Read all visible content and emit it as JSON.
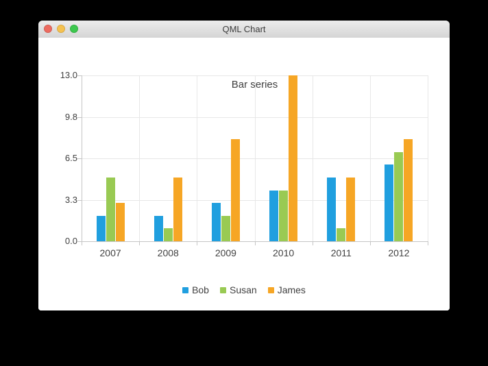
{
  "window": {
    "title": "QML Chart",
    "traffic_lights": {
      "close_color": "#ed6b60",
      "minimize_color": "#f5c250",
      "zoom_color": "#3dc84e"
    }
  },
  "chart_data": {
    "type": "bar",
    "title": "Bar series",
    "categories": [
      "2007",
      "2008",
      "2009",
      "2010",
      "2011",
      "2012"
    ],
    "series": [
      {
        "name": "Bob",
        "color": "#209fdf",
        "values": [
          2,
          2,
          3,
          4,
          5,
          6
        ]
      },
      {
        "name": "Susan",
        "color": "#99ca53",
        "values": [
          5,
          1,
          2,
          4,
          1,
          7
        ]
      },
      {
        "name": "James",
        "color": "#f6a625",
        "values": [
          3,
          5,
          8,
          13,
          5,
          8
        ]
      }
    ],
    "y_axis": {
      "tick_labels": [
        "13.0",
        "9.8",
        "6.5",
        "3.3",
        "0.0"
      ],
      "tick_values": [
        13,
        9.75,
        6.5,
        3.25,
        0
      ],
      "min": 0,
      "max": 13
    },
    "xlabel": "",
    "ylabel": "",
    "grid": true,
    "legend_position": "bottom"
  }
}
